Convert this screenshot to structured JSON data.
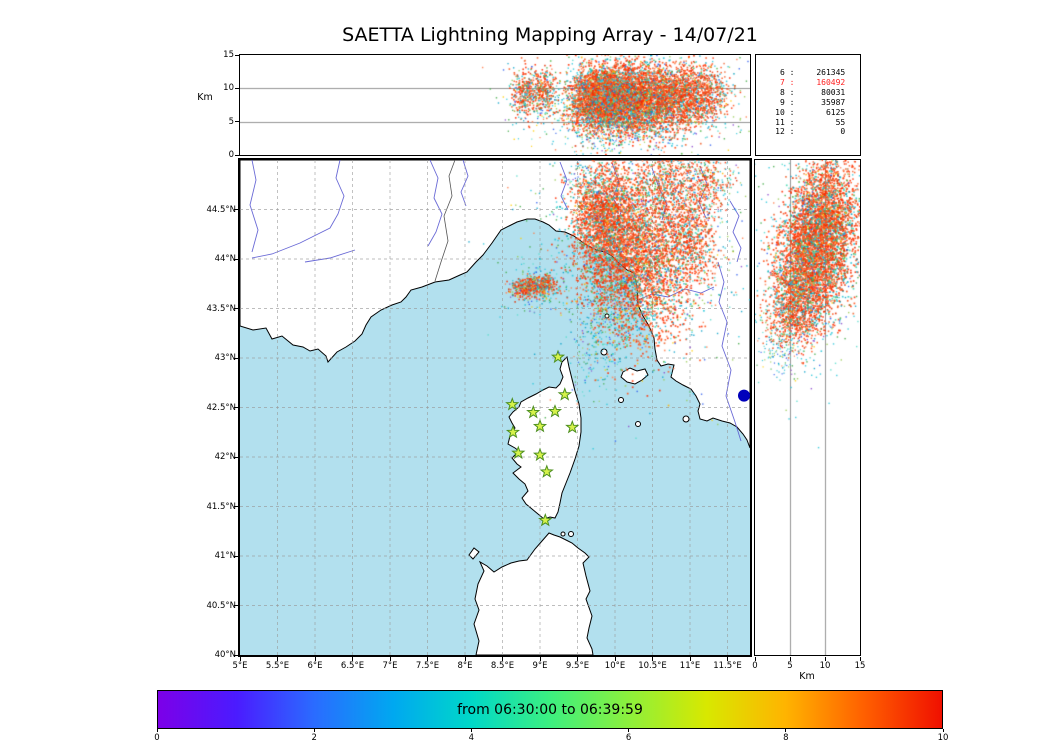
{
  "title": "SAETTA Lightning Mapping Array - 14/07/21",
  "top_panel": {
    "ylabel": "Km",
    "ytick_values": [
      0,
      5,
      10,
      15
    ],
    "ytick_labels": [
      "0",
      "5",
      "10",
      "15"
    ],
    "ylim_km": [
      0,
      15
    ],
    "grid_km": [
      5,
      10
    ]
  },
  "right_panel": {
    "xlabel": "Km",
    "xtick_values": [
      0,
      5,
      10,
      15
    ],
    "xtick_labels": [
      "0",
      "5",
      "10",
      "15"
    ],
    "xlim_km": [
      0,
      15
    ],
    "grid_km": [
      5,
      10
    ]
  },
  "map": {
    "lon_lim": [
      5,
      11.8
    ],
    "lat_lim": [
      40,
      45
    ],
    "lon_tick_values": [
      5,
      5.5,
      6,
      6.5,
      7,
      7.5,
      8,
      8.5,
      9,
      9.5,
      10,
      10.5,
      11,
      11.5
    ],
    "lon_tick_labels": [
      "5°E",
      "5.5°E",
      "6°E",
      "6.5°E",
      "7°E",
      "7.5°E",
      "8°E",
      "8.5°E",
      "9°E",
      "9.5°E",
      "10°E",
      "10.5°E",
      "11°E",
      "11.5°E"
    ],
    "lat_tick_values": [
      44.5,
      44,
      43.5,
      43,
      42.5,
      42,
      41.5,
      41,
      40.5,
      40
    ],
    "lat_tick_labels": [
      "44.5°N",
      "44°N",
      "43.5°N",
      "43°N",
      "42.5°N",
      "42°N",
      "41.5°N",
      "41°N",
      "40.5°N",
      "40°N"
    ],
    "colors": {
      "sea": "#b2e0ee",
      "land": "#ffffff",
      "coast": "#000000",
      "river": "#5a5ad2",
      "grid": "#999999",
      "border": "#555555",
      "station_fill": "#d6f24a",
      "station_stroke": "#4d8f1f",
      "marker_dot": "#0000bb"
    }
  },
  "stats_box": {
    "rows": [
      {
        "level": "6",
        "count": "261345",
        "highlight": false
      },
      {
        "level": "7",
        "count": "160492",
        "highlight": true
      },
      {
        "level": "8",
        "count": "80031",
        "highlight": false
      },
      {
        "level": "9",
        "count": "35987",
        "highlight": false
      },
      {
        "level": "10",
        "count": "6125",
        "highlight": false
      },
      {
        "level": "11",
        "count": "55",
        "highlight": false
      },
      {
        "level": "12",
        "count": "0",
        "highlight": false
      }
    ],
    "highlight_color": "#ff2020"
  },
  "colorbar": {
    "label": "from 06:30:00 to 06:39:59",
    "tick_labels": [
      "0",
      "2",
      "4",
      "6",
      "8",
      "10"
    ],
    "gradient": [
      "#7c00e8",
      "#4b1bff",
      "#2a6cff",
      "#00a8f0",
      "#00d8c8",
      "#3cf080",
      "#8cf03c",
      "#d8e800",
      "#ffb400",
      "#ff6000",
      "#f01000"
    ]
  },
  "chart_data": {
    "type": "scatter",
    "title": "SAETTA Lightning Mapping Array - 14/07/21",
    "time_window": {
      "start": "06:30:00",
      "end": "06:39:59",
      "colorbar_units": "minutes",
      "colorbar_range": [
        0,
        10
      ]
    },
    "panels": {
      "top": {
        "x": "longitude_deg_E",
        "y": "altitude_km",
        "xlim": [
          5,
          11.8
        ],
        "ylim": [
          0,
          15
        ]
      },
      "map": {
        "x": "longitude_deg_E",
        "y": "latitude_deg_N",
        "xlim": [
          5,
          11.8
        ],
        "ylim": [
          40,
          45
        ]
      },
      "right": {
        "x": "altitude_km",
        "y": "latitude_deg_N",
        "xlim": [
          0,
          15
        ],
        "ylim": [
          40,
          45
        ]
      }
    },
    "stations_lon_lat": [
      [
        9.24,
        43.01
      ],
      [
        9.33,
        42.63
      ],
      [
        8.63,
        42.53
      ],
      [
        8.91,
        42.45
      ],
      [
        9.2,
        42.46
      ],
      [
        8.64,
        42.25
      ],
      [
        9.0,
        42.31
      ],
      [
        9.43,
        42.3
      ],
      [
        8.71,
        42.04
      ],
      [
        9.0,
        42.02
      ],
      [
        9.09,
        41.85
      ],
      [
        9.07,
        41.36
      ]
    ],
    "marker_dot_lon_lat": [
      11.72,
      42.62
    ],
    "palettes": {
      "storm": [
        [
          "#ff2f00",
          26
        ],
        [
          "#ff4f14",
          20
        ],
        [
          "#ef6430",
          14
        ],
        [
          "#ff8a5c",
          7
        ],
        [
          "#e03000",
          9
        ],
        [
          "#ffb300",
          2
        ],
        [
          "#26c6da",
          8
        ],
        [
          "#00a0bb",
          4
        ],
        [
          "#45d8b0",
          3
        ],
        [
          "#52b84a",
          4
        ],
        [
          "#9ccc65",
          2
        ],
        [
          "#2255ee",
          1
        ]
      ],
      "cool": [
        [
          "#26c6da",
          26
        ],
        [
          "#00a0c8",
          14
        ],
        [
          "#55dccc",
          12
        ],
        [
          "#3da843",
          12
        ],
        [
          "#99cc55",
          10
        ],
        [
          "#2b5bee",
          9
        ],
        [
          "#8a46cc",
          6
        ],
        [
          "#ffce00",
          5
        ],
        [
          "#ff7744",
          6
        ]
      ]
    },
    "map_clusters": [
      {
        "x": 10.33,
        "y": 43.95,
        "sx": 0.33,
        "sy": 0.42,
        "n": 2600,
        "pal": "storm",
        "sz": 1.7
      },
      {
        "x": 9.92,
        "y": 44.28,
        "sx": 0.25,
        "sy": 0.33,
        "n": 1800,
        "pal": "storm",
        "sz": 1.7
      },
      {
        "x": 9.78,
        "y": 44.5,
        "sx": 0.17,
        "sy": 0.2,
        "n": 600,
        "pal": "storm",
        "sz": 1.6
      },
      {
        "x": 10.3,
        "y": 44.1,
        "sx": 0.75,
        "sy": 0.7,
        "n": 950,
        "pal": "cool",
        "sz": 1.4
      },
      {
        "x": 10.68,
        "y": 44.82,
        "sx": 0.18,
        "sy": 0.14,
        "n": 380,
        "pal": "storm",
        "sz": 1.5
      },
      {
        "x": 11.28,
        "y": 44.78,
        "sx": 0.15,
        "sy": 0.12,
        "n": 250,
        "pal": "storm",
        "sz": 1.5
      },
      {
        "x": 11.0,
        "y": 44.72,
        "sx": 0.3,
        "sy": 0.18,
        "n": 150,
        "pal": "cool",
        "sz": 1.3
      },
      {
        "x": 11.03,
        "y": 44.17,
        "sx": 0.18,
        "sy": 0.25,
        "n": 550,
        "pal": "storm",
        "sz": 1.6
      },
      {
        "x": 10.85,
        "y": 44.45,
        "sx": 0.22,
        "sy": 0.22,
        "n": 300,
        "pal": "storm",
        "sz": 1.4
      },
      {
        "x": 8.82,
        "y": 43.71,
        "sx": 0.1,
        "sy": 0.055,
        "n": 300,
        "pal": "storm",
        "sz": 1.6
      },
      {
        "x": 9.06,
        "y": 43.73,
        "sx": 0.08,
        "sy": 0.05,
        "n": 240,
        "pal": "storm",
        "sz": 1.6
      },
      {
        "x": 8.94,
        "y": 43.7,
        "sx": 0.2,
        "sy": 0.12,
        "n": 130,
        "pal": "cool",
        "sz": 1.3
      },
      {
        "x": 9.85,
        "y": 43.3,
        "sx": 0.18,
        "sy": 0.28,
        "n": 160,
        "pal": "cool",
        "sz": 1.3
      },
      {
        "x": 9.63,
        "y": 42.98,
        "sx": 0.1,
        "sy": 0.16,
        "n": 50,
        "pal": "cool",
        "sz": 1.2
      },
      {
        "x": 10.15,
        "y": 43.6,
        "sx": 0.28,
        "sy": 0.22,
        "n": 200,
        "pal": "cool",
        "sz": 1.3
      },
      {
        "x": 9.55,
        "y": 44.82,
        "sx": 0.12,
        "sy": 0.12,
        "n": 60,
        "pal": "cool",
        "sz": 1.3
      }
    ],
    "top_clusters": [
      {
        "x": 9.92,
        "y": 8.6,
        "sx": 0.25,
        "sy": 2.4,
        "n": 1900,
        "pal": "storm",
        "sz": 1.7
      },
      {
        "x": 9.78,
        "y": 9.0,
        "sx": 0.17,
        "sy": 2.0,
        "n": 600,
        "pal": "storm",
        "sz": 1.6
      },
      {
        "x": 10.33,
        "y": 8.2,
        "sx": 0.33,
        "sy": 2.7,
        "n": 2500,
        "pal": "storm",
        "sz": 1.7
      },
      {
        "x": 10.3,
        "y": 8.0,
        "sx": 0.75,
        "sy": 3.6,
        "n": 900,
        "pal": "cool",
        "sz": 1.4
      },
      {
        "x": 10.68,
        "y": 9.0,
        "sx": 0.18,
        "sy": 2.2,
        "n": 420,
        "pal": "storm",
        "sz": 1.5
      },
      {
        "x": 11.28,
        "y": 9.2,
        "sx": 0.15,
        "sy": 2.0,
        "n": 280,
        "pal": "storm",
        "sz": 1.5
      },
      {
        "x": 11.03,
        "y": 8.6,
        "sx": 0.18,
        "sy": 2.4,
        "n": 550,
        "pal": "storm",
        "sz": 1.6
      },
      {
        "x": 10.85,
        "y": 9.0,
        "sx": 0.22,
        "sy": 2.3,
        "n": 320,
        "pal": "storm",
        "sz": 1.4
      },
      {
        "x": 8.82,
        "y": 9.2,
        "sx": 0.09,
        "sy": 1.9,
        "n": 300,
        "pal": "storm",
        "sz": 1.6
      },
      {
        "x": 9.06,
        "y": 9.6,
        "sx": 0.07,
        "sy": 1.5,
        "n": 220,
        "pal": "storm",
        "sz": 1.6
      },
      {
        "x": 8.94,
        "y": 8.6,
        "sx": 0.18,
        "sy": 2.6,
        "n": 130,
        "pal": "cool",
        "sz": 1.3
      },
      {
        "x": 9.6,
        "y": 7.5,
        "sx": 0.12,
        "sy": 2.2,
        "n": 260,
        "pal": "storm",
        "sz": 1.5
      },
      {
        "x": 9.85,
        "y": 5.0,
        "sx": 0.2,
        "sy": 2.6,
        "n": 170,
        "pal": "cool",
        "sz": 1.3
      },
      {
        "x": 10.1,
        "y": 1.8,
        "sx": 0.5,
        "sy": 1.2,
        "n": 60,
        "pal": "cool",
        "sz": 1.2
      }
    ],
    "right_clusters": [
      {
        "x": 10.5,
        "y": 44.85,
        "sx": 2.0,
        "sy": 0.11,
        "n": 320,
        "pal": "storm",
        "sz": 1.5
      },
      {
        "x": 10.0,
        "y": 44.45,
        "sx": 2.4,
        "sy": 0.2,
        "n": 1500,
        "pal": "storm",
        "sz": 1.7
      },
      {
        "x": 8.5,
        "y": 44.0,
        "sx": 2.6,
        "sy": 0.26,
        "n": 2300,
        "pal": "storm",
        "sz": 1.7
      },
      {
        "x": 6.5,
        "y": 43.62,
        "sx": 2.2,
        "sy": 0.2,
        "n": 900,
        "pal": "storm",
        "sz": 1.6
      },
      {
        "x": 5.0,
        "y": 43.35,
        "sx": 1.8,
        "sy": 0.14,
        "n": 350,
        "pal": "storm",
        "sz": 1.5
      },
      {
        "x": 8.0,
        "y": 44.0,
        "sx": 3.6,
        "sy": 0.6,
        "n": 650,
        "pal": "cool",
        "sz": 1.4
      },
      {
        "x": 3.0,
        "y": 43.1,
        "sx": 1.4,
        "sy": 0.11,
        "n": 80,
        "pal": "cool",
        "sz": 1.2
      },
      {
        "x": 4.0,
        "y": 42.98,
        "sx": 1.1,
        "sy": 0.09,
        "n": 40,
        "pal": "cool",
        "sz": 1.2
      }
    ]
  }
}
